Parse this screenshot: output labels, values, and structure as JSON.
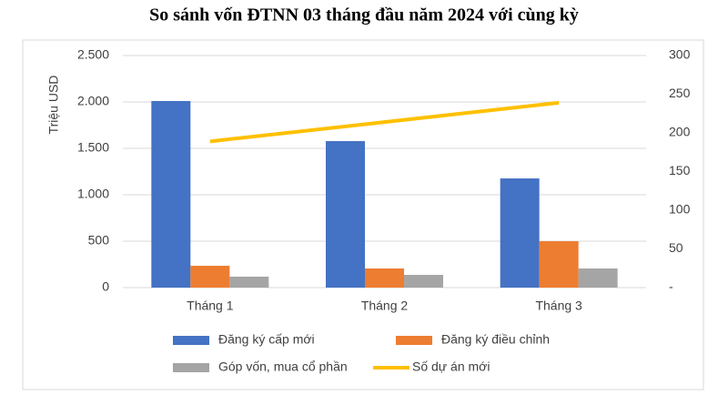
{
  "chart_data": {
    "type": "bar_line",
    "title": "So sánh vốn ĐTNN 03 tháng đầu năm 2024 với cùng kỳ",
    "y_label": "Triệu USD",
    "categories": [
      "Tháng 1",
      "Tháng 2",
      "Tháng 3"
    ],
    "series": [
      {
        "name": "Đăng ký cấp mới",
        "color": "#4472c4",
        "type": "bar",
        "values": [
          2010,
          1578,
          1176
        ]
      },
      {
        "name": "Đăng ký điều chỉnh",
        "color": "#ed7d31",
        "type": "bar",
        "values": [
          235,
          206,
          500
        ]
      },
      {
        "name": "Góp vốn, mua cổ phần",
        "color": "#a5a5a5",
        "type": "bar",
        "values": [
          118,
          137,
          206
        ]
      },
      {
        "name": "Số dự án mới",
        "color": "#ffc000",
        "type": "line",
        "axis": "y2",
        "values": [
          189,
          214,
          239
        ]
      }
    ],
    "ylim": [
      0,
      2500
    ],
    "yticks": [
      0,
      500,
      {
        "value": 1000,
        "label": "1.000"
      },
      {
        "value": 1500,
        "label": "1.500"
      },
      {
        "value": 2000,
        "label": "2.000"
      },
      {
        "value": 2500,
        "label": "2.500"
      }
    ],
    "y2lim": [
      0,
      300
    ],
    "y2ticks": [
      {
        "value": 0,
        "label": "-"
      },
      50,
      100,
      150,
      200,
      250,
      300
    ],
    "legend": "bottom"
  }
}
